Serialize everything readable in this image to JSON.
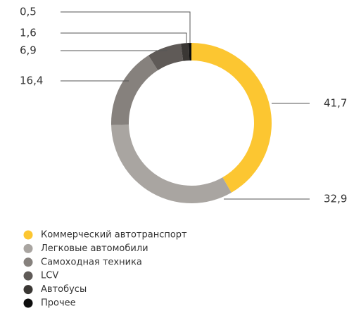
{
  "chart_data": {
    "type": "pie",
    "categories": [
      "Коммерческий автотранспорт",
      "Легковые автомобили",
      "Самоходная техника",
      "LCV",
      "Автобусы",
      "Прочее"
    ],
    "values": [
      41.7,
      32.9,
      16.4,
      6.9,
      1.6,
      0.5
    ],
    "value_labels": [
      "41,7",
      "32,9",
      "16,4",
      "6,9",
      "1,6",
      "0,5"
    ],
    "colors": [
      "#fcc631",
      "#a9a5a1",
      "#86817d",
      "#5f5a57",
      "#3a3734",
      "#0d0d0d"
    ],
    "donut": true,
    "legend": "bottom-left"
  }
}
